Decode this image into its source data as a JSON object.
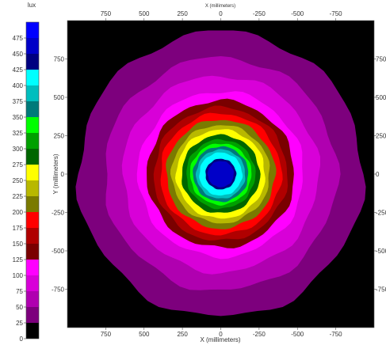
{
  "chart_data": {
    "type": "heatmap",
    "title": "",
    "colorbar": {
      "unit_label": "lux",
      "ticks": [
        "0",
        "25",
        "50",
        "75",
        "100",
        "125",
        "150",
        "175",
        "200",
        "225",
        "250",
        "275",
        "300",
        "325",
        "350",
        "375",
        "400",
        "425",
        "450",
        "475"
      ],
      "bands": [
        {
          "from": 0,
          "to": 25,
          "color": "#000000"
        },
        {
          "from": 25,
          "to": 50,
          "color": "#7d007d"
        },
        {
          "from": 50,
          "to": 75,
          "color": "#b000b0"
        },
        {
          "from": 75,
          "to": 100,
          "color": "#d800d8"
        },
        {
          "from": 100,
          "to": 125,
          "color": "#ff00ff"
        },
        {
          "from": 125,
          "to": 150,
          "color": "#7a0000"
        },
        {
          "from": 150,
          "to": 175,
          "color": "#b00000"
        },
        {
          "from": 175,
          "to": 200,
          "color": "#ff0000"
        },
        {
          "from": 200,
          "to": 225,
          "color": "#7a7a00"
        },
        {
          "from": 225,
          "to": 250,
          "color": "#b8b800"
        },
        {
          "from": 250,
          "to": 275,
          "color": "#ffff00"
        },
        {
          "from": 275,
          "to": 300,
          "color": "#006600"
        },
        {
          "from": 300,
          "to": 325,
          "color": "#00a000"
        },
        {
          "from": 325,
          "to": 350,
          "color": "#00ff00"
        },
        {
          "from": 350,
          "to": 375,
          "color": "#007a7a"
        },
        {
          "from": 375,
          "to": 400,
          "color": "#00bebe"
        },
        {
          "from": 400,
          "to": 425,
          "color": "#00ffff"
        },
        {
          "from": 425,
          "to": 450,
          "color": "#000080"
        },
        {
          "from": 450,
          "to": 475,
          "color": "#0000c8"
        },
        {
          "from": 475,
          "to": 500,
          "color": "#0000ff"
        }
      ]
    },
    "x_axis": {
      "label": "X (millimeters)",
      "range": [
        1000,
        -1000
      ],
      "ticks": [
        750,
        500,
        250,
        0,
        -250,
        -500,
        -750
      ],
      "tick_labels": [
        "750",
        "500",
        "250",
        "0",
        "-250",
        "-500",
        "-750"
      ]
    },
    "y_axis": {
      "label": "Y (millimeters)",
      "range": [
        -1000,
        1000
      ],
      "ticks": [
        750,
        500,
        250,
        0,
        -250,
        -500,
        -750
      ],
      "tick_labels": [
        "750",
        "500",
        "250",
        "0",
        "-250",
        "-500",
        "-750"
      ]
    },
    "top_axis_label": "X (millimeters)",
    "background_color": "#000000",
    "contours_mm": [
      {
        "radius": 930,
        "color": "#7d007d"
      },
      {
        "radius": 760,
        "color": "#b000b0"
      },
      {
        "radius": 640,
        "color": "#d800d8"
      },
      {
        "radius": 540,
        "color": "#ff00ff"
      },
      {
        "radius": 480,
        "color": "#7a0000"
      },
      {
        "radius": 435,
        "color": "#b00000"
      },
      {
        "radius": 395,
        "color": "#ff0000"
      },
      {
        "radius": 355,
        "color": "#7a7a00"
      },
      {
        "radius": 320,
        "color": "#b8b800"
      },
      {
        "radius": 290,
        "color": "#ffff00"
      },
      {
        "radius": 255,
        "color": "#006600"
      },
      {
        "radius": 225,
        "color": "#00a000"
      },
      {
        "radius": 200,
        "color": "#00ff00"
      },
      {
        "radius": 180,
        "color": "#007a7a"
      },
      {
        "radius": 160,
        "color": "#00bebe"
      },
      {
        "radius": 140,
        "color": "#00ffff"
      },
      {
        "radius": 100,
        "color": "#000080"
      },
      {
        "radius": 85,
        "color": "#0000c8"
      }
    ]
  }
}
